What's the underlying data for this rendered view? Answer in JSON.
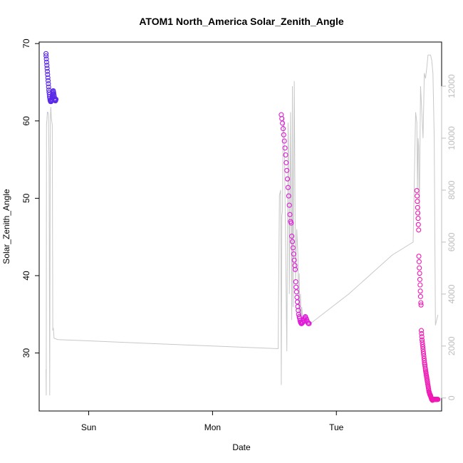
{
  "chart_data": {
    "type": "scatter",
    "title": "ATOM1 North_America Solar_Zenith_Angle",
    "xlabel": "Date",
    "ylabel": "Solar_Zenith_Angle",
    "x_unit": "days",
    "xlim": [
      -0.4,
      2.85
    ],
    "ylim": [
      22.5,
      70.2
    ],
    "x_ticks": [
      {
        "value": 0,
        "label": "Sun"
      },
      {
        "value": 1,
        "label": "Mon"
      },
      {
        "value": 2,
        "label": "Tue"
      }
    ],
    "y_ticks": [
      30,
      40,
      50,
      60,
      70
    ],
    "y2_ticks": [
      0,
      2000,
      4000,
      6000,
      8000,
      10000,
      12000
    ],
    "y2lim": [
      -500,
      13700
    ],
    "series": [
      {
        "values_x": [
          -0.345,
          -0.344,
          -0.342,
          -0.34,
          -0.338,
          -0.336,
          -0.334,
          -0.332,
          -0.33,
          -0.328,
          -0.326,
          -0.324,
          -0.322,
          -0.32,
          -0.318,
          -0.316,
          -0.314,
          -0.312,
          -0.31,
          -0.308,
          -0.306,
          -0.304,
          -0.302,
          -0.3,
          -0.298,
          -0.296,
          -0.294,
          -0.292,
          -0.29,
          -0.288,
          -0.286,
          -0.284,
          -0.282,
          -0.28,
          -0.278,
          -0.276,
          -0.274,
          -0.272,
          -0.27,
          -0.268,
          -0.266,
          -0.264
        ],
        "values_y": [
          68.7,
          68.4,
          68.0,
          67.6,
          67.2,
          66.8,
          66.4,
          66.0,
          65.6,
          65.2,
          64.8,
          64.4,
          64.0,
          63.7,
          63.4,
          63.1,
          62.9,
          62.7,
          62.6,
          62.5,
          62.5,
          62.5,
          62.6,
          62.7,
          62.8,
          63.0,
          63.2,
          63.4,
          63.6,
          63.8,
          63.9,
          63.7,
          63.5,
          63.3,
          63.1,
          62.9,
          62.8,
          62.7,
          62.6,
          62.6,
          62.7,
          62.8
        ],
        "color": "#5b2be8"
      },
      {
        "values_x": [
          1.555,
          1.56,
          1.565,
          1.57,
          1.575,
          1.58,
          1.585,
          1.59,
          1.595,
          1.6,
          1.605,
          1.61,
          1.615,
          1.62,
          1.625,
          1.63,
          1.635,
          1.64,
          1.645,
          1.65,
          1.655,
          1.66,
          1.665,
          1.668,
          1.672,
          1.675,
          1.678,
          1.682,
          1.685,
          1.688,
          1.692,
          1.695,
          1.7,
          1.703,
          1.706,
          1.71,
          1.713,
          1.716,
          1.72,
          1.725,
          1.73,
          1.735,
          1.74,
          1.745,
          1.75,
          1.755,
          1.76,
          1.765,
          1.77,
          1.775,
          1.78
        ],
        "values_y": [
          60.8,
          60.3,
          59.7,
          59.0,
          58.2,
          57.4,
          56.5,
          55.6,
          54.6,
          53.6,
          52.5,
          51.4,
          50.3,
          49.1,
          47.9,
          47.0,
          46.8,
          45.1,
          44.4,
          43.6,
          42.8,
          42.0,
          41.3,
          40.8,
          39.2,
          38.5,
          37.9,
          37.2,
          36.6,
          36.0,
          35.5,
          35.0,
          34.7,
          34.5,
          34.2,
          34.0,
          33.9,
          33.8,
          33.8,
          33.9,
          34.0,
          34.2,
          34.4,
          34.6,
          34.7,
          34.5,
          34.3,
          34.1,
          33.9,
          33.8,
          33.8
        ],
        "color": "#e01ad8"
      },
      {
        "values_x": [
          2.65,
          2.652,
          2.654,
          2.656,
          2.658,
          2.66,
          2.662,
          2.664,
          2.666,
          2.668,
          2.67,
          2.672,
          2.674,
          2.676,
          2.678,
          2.68,
          2.682,
          2.684,
          2.686,
          2.688,
          2.69,
          2.692,
          2.694,
          2.696,
          2.698,
          2.7,
          2.702,
          2.704,
          2.706,
          2.708,
          2.71,
          2.712,
          2.714,
          2.716,
          2.718,
          2.72,
          2.722,
          2.724,
          2.726,
          2.728,
          2.73,
          2.732,
          2.734,
          2.736,
          2.738,
          2.74,
          2.742,
          2.744,
          2.746,
          2.748,
          2.75,
          2.752,
          2.754,
          2.756,
          2.758,
          2.76,
          2.762,
          2.764,
          2.766,
          2.768,
          2.77,
          2.772,
          2.774,
          2.776,
          2.778,
          2.78,
          2.782,
          2.784,
          2.786,
          2.788,
          2.79,
          2.792,
          2.794,
          2.796,
          2.798,
          2.8,
          2.802,
          2.804,
          2.806,
          2.808,
          2.81,
          2.812,
          2.814,
          2.816,
          2.818,
          2.82
        ],
        "values_y": [
          51.0,
          50.3,
          49.6,
          48.8,
          48.1,
          47.4,
          46.6,
          45.9,
          42.5,
          41.8,
          41.0,
          40.3,
          39.5,
          38.8,
          38.0,
          37.3,
          36.5,
          36.2,
          32.9,
          32.5,
          32.1,
          31.7,
          31.4,
          31.1,
          30.8,
          30.5,
          30.2,
          29.9,
          29.6,
          29.3,
          29.0,
          28.7,
          28.5,
          28.3,
          28.0,
          27.8,
          27.6,
          27.4,
          27.2,
          27.0,
          26.8,
          26.6,
          26.4,
          26.2,
          26.0,
          25.8,
          25.6,
          25.4,
          25.2,
          25.0,
          24.9,
          24.8,
          24.7,
          24.6,
          24.5,
          24.5,
          24.4,
          24.3,
          24.2,
          24.1,
          24.0,
          24.0,
          23.9,
          23.9,
          23.9,
          24.0,
          24.0,
          24.0,
          24.0,
          24.0,
          24.0,
          24.0,
          24.0,
          24.0,
          24.0,
          24.0,
          24.0,
          24.0,
          24.0,
          24.0,
          24.0,
          24.0,
          24.0,
          24.0,
          24.0,
          24.0
        ],
        "color": "#f01ab4"
      },
      {
        "type": "line",
        "axis": "right",
        "color": "#c8c8c8",
        "x": [
          -0.345,
          -0.343,
          -0.341,
          -0.338,
          -0.334,
          -0.33,
          -0.325,
          -0.32,
          -0.315,
          -0.31,
          -0.306,
          -0.304,
          -0.302,
          -0.3,
          -0.297,
          -0.294,
          -0.29,
          -0.286,
          -0.28,
          -0.25,
          0.0,
          0.5,
          1.0,
          1.53,
          1.54,
          1.55,
          1.555,
          1.56,
          1.565,
          1.57,
          1.575,
          1.58,
          1.6,
          1.61,
          1.615,
          1.62,
          1.63,
          1.64,
          1.645,
          1.65,
          1.655,
          1.66,
          1.67,
          1.68,
          1.69,
          1.695,
          1.7,
          1.705,
          1.71,
          1.715,
          1.72,
          1.73,
          1.74,
          1.75,
          1.76,
          1.77,
          1.78,
          1.79,
          1.8,
          2.1,
          2.45,
          2.62,
          2.64,
          2.65,
          2.655,
          2.66,
          2.665,
          2.67,
          2.68,
          2.69,
          2.7,
          2.71,
          2.72,
          2.73,
          2.74,
          2.75,
          2.76,
          2.77,
          2.78,
          2.79,
          2.8,
          2.81,
          2.82
        ],
        "y": [
          1100,
          100,
          10500,
          10700,
          11000,
          11000,
          10900,
          9000,
          100,
          10700,
          11200,
          11000,
          10800,
          10700,
          10600,
          10500,
          2600,
          2700,
          2300,
          2250,
          2200,
          2100,
          2000,
          1900,
          7800,
          8000,
          500,
          7000,
          7200,
          10800,
          10500,
          10000,
          1800,
          10600,
          9500,
          4000,
          11000,
          3000,
          12000,
          3500,
          8000,
          12200,
          4500,
          6500,
          5500,
          3000,
          4800,
          2800,
          4000,
          2900,
          3500,
          3000,
          3200,
          3100,
          3000,
          2900,
          2900,
          2950,
          2900,
          4000,
          5500,
          6000,
          11000,
          10600,
          8000,
          10000,
          9700,
          7000,
          12000,
          11000,
          10000,
          12500,
          12300,
          12700,
          13200,
          13200,
          13200,
          13000,
          12500,
          10000,
          2800,
          3000,
          3200
        ]
      }
    ]
  }
}
